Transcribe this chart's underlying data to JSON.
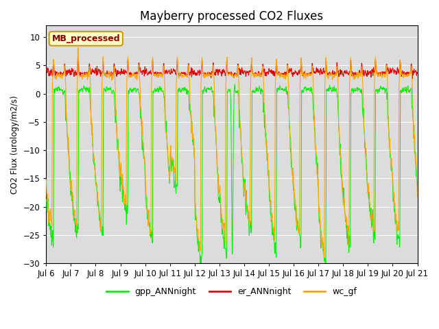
{
  "title": "Mayberry processed CO2 Fluxes",
  "ylabel": "CO2 Flux (urology/m2/s)",
  "ylim": [
    -30,
    12
  ],
  "yticks": [
    -30,
    -25,
    -20,
    -15,
    -10,
    -5,
    0,
    5,
    10
  ],
  "bg_color": "#dcdcdc",
  "fig_color": "#ffffff",
  "line_gpp_color": "#00ee00",
  "line_er_color": "#dd0000",
  "line_wc_color": "#ffa500",
  "legend_label": "MB_processed",
  "legend_box_color": "#ffffcc",
  "legend_box_edge": "#cc9900",
  "legend_text_color": "#880000",
  "series_labels": [
    "gpp_ANNnight",
    "er_ANNnight",
    "wc_gf"
  ],
  "series_colors": [
    "#00ee00",
    "#dd0000",
    "#ffa500"
  ],
  "n_days": 15,
  "points_per_day": 96,
  "start_day": 6,
  "xlabel_days": [
    6,
    7,
    8,
    9,
    10,
    11,
    12,
    13,
    14,
    15,
    16,
    17,
    18,
    19,
    20,
    21
  ]
}
